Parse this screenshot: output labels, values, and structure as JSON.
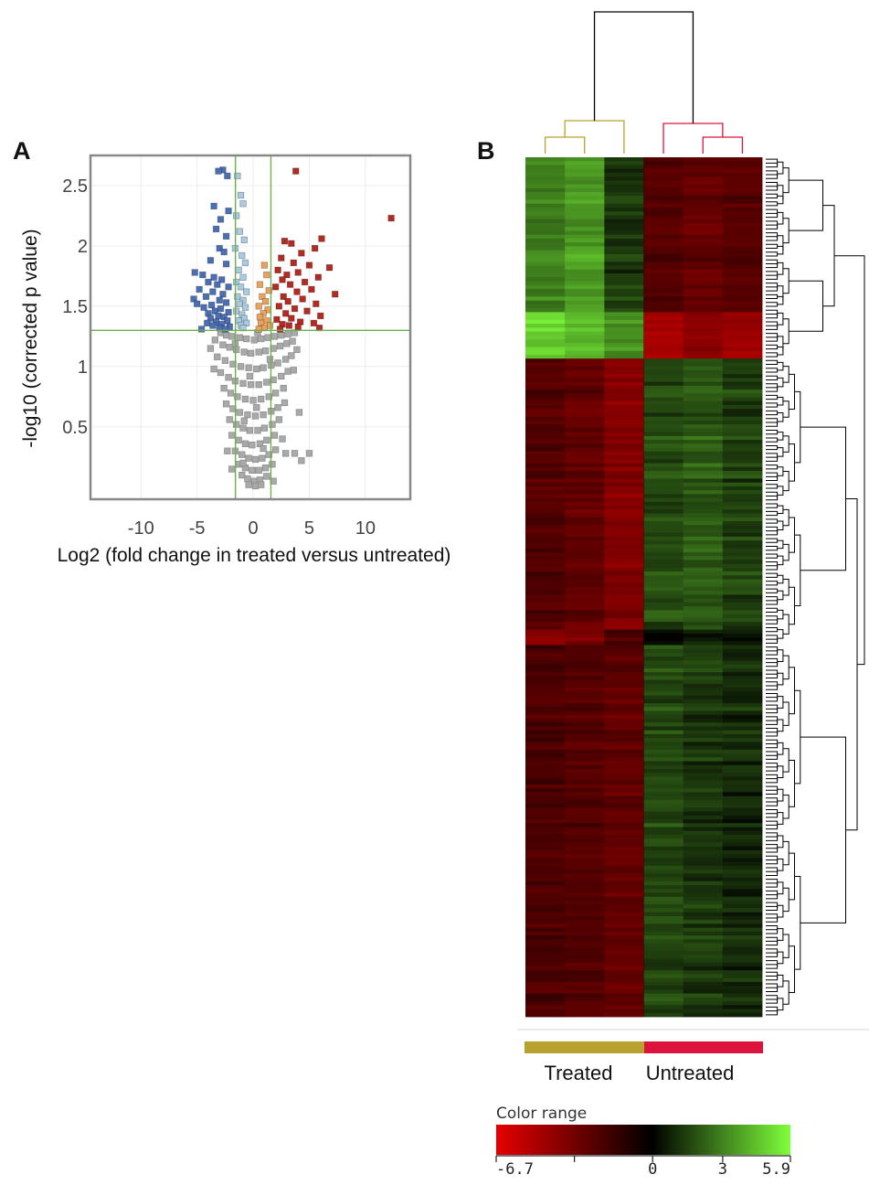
{
  "panels": {
    "a_label": "A",
    "b_label": "B"
  },
  "chart_data": [
    {
      "type": "scatter",
      "panel": "A",
      "xlabel": "Log2 (fold change in treated versus untreated)",
      "ylabel": "-log10 (corrected p value)",
      "xlim": [
        -14.5,
        14
      ],
      "ylim": [
        -0.1,
        2.75
      ],
      "xticks": [
        -10,
        -5,
        0,
        5,
        10
      ],
      "yticks": [
        0.5,
        1,
        1.5,
        2,
        2.5
      ],
      "grid": true,
      "thresholds": {
        "x": [
          -1.58,
          1.58
        ],
        "y": 1.3
      },
      "colors": {
        "not_significant": "#a9a9a9",
        "down_strong": "#4a6fb5",
        "down_weak": "#a8cbe2",
        "up_weak": "#eba35b",
        "up_strong": "#b52a22",
        "threshold_line": "#6ab04c"
      },
      "series": [
        {
          "key": "down_strong",
          "points": [
            [
              -2.7,
              2.63
            ],
            [
              -3.1,
              2.62
            ],
            [
              -2.3,
              2.58
            ],
            [
              -3.5,
              2.33
            ],
            [
              -2.2,
              2.29
            ],
            [
              -2.9,
              2.22
            ],
            [
              -3.3,
              2.14
            ],
            [
              -2.4,
              2.08
            ],
            [
              -3.0,
              1.98
            ],
            [
              -2.6,
              1.95
            ],
            [
              -3.8,
              1.88
            ],
            [
              -2.4,
              1.85
            ],
            [
              -5.2,
              1.78
            ],
            [
              -4.5,
              1.76
            ],
            [
              -3.5,
              1.74
            ],
            [
              -2.8,
              1.72
            ],
            [
              -4.0,
              1.7
            ],
            [
              -3.2,
              1.68
            ],
            [
              -2.2,
              1.66
            ],
            [
              -4.8,
              1.64
            ],
            [
              -3.6,
              1.62
            ],
            [
              -2.7,
              1.6
            ],
            [
              -4.2,
              1.58
            ],
            [
              -5.3,
              1.56
            ],
            [
              -3.0,
              1.55
            ],
            [
              -2.4,
              1.53
            ],
            [
              -5.0,
              1.52
            ],
            [
              -3.7,
              1.51
            ],
            [
              -4.4,
              1.49
            ],
            [
              -2.9,
              1.48
            ],
            [
              -3.4,
              1.46
            ],
            [
              -2.2,
              1.45
            ],
            [
              -4.0,
              1.44
            ],
            [
              -3.1,
              1.42
            ],
            [
              -2.6,
              1.41
            ],
            [
              -3.8,
              1.4
            ],
            [
              -2.3,
              1.38
            ],
            [
              -3.3,
              1.37
            ],
            [
              -4.1,
              1.36
            ],
            [
              -2.8,
              1.35
            ],
            [
              -3.6,
              1.34
            ],
            [
              -2.1,
              1.33
            ],
            [
              -3.0,
              1.32
            ],
            [
              -4.6,
              1.31
            ],
            [
              -2.5,
              1.31
            ]
          ]
        },
        {
          "key": "down_weak",
          "points": [
            [
              -1.4,
              2.58
            ],
            [
              -1.1,
              2.42
            ],
            [
              -0.9,
              2.35
            ],
            [
              -1.5,
              2.25
            ],
            [
              -1.2,
              2.12
            ],
            [
              -0.8,
              2.05
            ],
            [
              -1.6,
              1.98
            ],
            [
              -1.0,
              1.92
            ],
            [
              -0.7,
              1.86
            ],
            [
              -1.3,
              1.8
            ],
            [
              -0.9,
              1.74
            ],
            [
              -1.5,
              1.7
            ],
            [
              -1.1,
              1.66
            ],
            [
              -0.6,
              1.62
            ],
            [
              -1.4,
              1.58
            ],
            [
              -0.9,
              1.55
            ],
            [
              -1.2,
              1.52
            ],
            [
              -0.7,
              1.49
            ],
            [
              -1.5,
              1.46
            ],
            [
              -1.0,
              1.43
            ],
            [
              -0.8,
              1.4
            ],
            [
              -1.3,
              1.38
            ],
            [
              -0.6,
              1.36
            ],
            [
              -1.1,
              1.34
            ],
            [
              -0.9,
              1.32
            ]
          ]
        },
        {
          "key": "up_weak",
          "points": [
            [
              1.0,
              1.84
            ],
            [
              1.2,
              1.76
            ],
            [
              0.6,
              1.68
            ],
            [
              1.4,
              1.63
            ],
            [
              0.8,
              1.58
            ],
            [
              1.1,
              1.54
            ],
            [
              0.5,
              1.5
            ],
            [
              1.3,
              1.47
            ],
            [
              0.9,
              1.44
            ],
            [
              0.6,
              1.41
            ],
            [
              1.2,
              1.38
            ],
            [
              0.7,
              1.36
            ],
            [
              1.5,
              1.34
            ],
            [
              1.0,
              1.32
            ],
            [
              0.5,
              1.31
            ]
          ]
        },
        {
          "key": "up_strong",
          "points": [
            [
              3.8,
              2.62
            ],
            [
              12.3,
              2.23
            ],
            [
              6.1,
              2.06
            ],
            [
              2.8,
              2.04
            ],
            [
              3.4,
              2.02
            ],
            [
              5.5,
              1.98
            ],
            [
              4.3,
              1.94
            ],
            [
              2.5,
              1.9
            ],
            [
              3.6,
              1.86
            ],
            [
              5.0,
              1.84
            ],
            [
              6.8,
              1.82
            ],
            [
              2.2,
              1.8
            ],
            [
              4.0,
              1.78
            ],
            [
              3.0,
              1.76
            ],
            [
              5.8,
              1.74
            ],
            [
              2.6,
              1.72
            ],
            [
              4.6,
              1.7
            ],
            [
              3.3,
              1.68
            ],
            [
              2.0,
              1.66
            ],
            [
              5.2,
              1.64
            ],
            [
              3.9,
              1.62
            ],
            [
              7.3,
              1.6
            ],
            [
              2.7,
              1.58
            ],
            [
              4.4,
              1.56
            ],
            [
              3.1,
              1.54
            ],
            [
              5.6,
              1.52
            ],
            [
              2.3,
              1.5
            ],
            [
              3.7,
              1.48
            ],
            [
              4.8,
              1.46
            ],
            [
              2.9,
              1.44
            ],
            [
              6.0,
              1.42
            ],
            [
              3.4,
              1.4
            ],
            [
              2.1,
              1.39
            ],
            [
              4.2,
              1.37
            ],
            [
              5.4,
              1.36
            ],
            [
              2.6,
              1.35
            ],
            [
              3.2,
              1.34
            ],
            [
              4.0,
              1.33
            ],
            [
              5.9,
              1.32
            ],
            [
              2.4,
              1.31
            ]
          ]
        },
        {
          "key": "not_significant",
          "note_free": true,
          "points": [
            [
              -2.9,
              1.28
            ],
            [
              -2.4,
              1.26
            ],
            [
              -1.9,
              1.25
            ],
            [
              -1.2,
              1.24
            ],
            [
              -0.6,
              1.23
            ],
            [
              0.1,
              1.22
            ],
            [
              0.7,
              1.23
            ],
            [
              1.3,
              1.24
            ],
            [
              1.9,
              1.25
            ],
            [
              2.5,
              1.26
            ],
            [
              3.1,
              1.27
            ],
            [
              3.7,
              1.28
            ],
            [
              -3.4,
              1.22
            ],
            [
              -2.7,
              1.18
            ],
            [
              -2.1,
              1.16
            ],
            [
              -1.5,
              1.14
            ],
            [
              -0.8,
              1.12
            ],
            [
              -0.2,
              1.11
            ],
            [
              0.5,
              1.12
            ],
            [
              1.1,
              1.13
            ],
            [
              1.8,
              1.15
            ],
            [
              2.4,
              1.17
            ],
            [
              3.0,
              1.19
            ],
            [
              3.5,
              1.21
            ],
            [
              -3.2,
              1.08
            ],
            [
              -2.5,
              1.05
            ],
            [
              -1.8,
              1.02
            ],
            [
              -1.1,
              1.0
            ],
            [
              -0.4,
              0.99
            ],
            [
              0.3,
              0.98
            ],
            [
              0.9,
              0.99
            ],
            [
              1.6,
              1.01
            ],
            [
              2.2,
              1.03
            ],
            [
              2.9,
              1.06
            ],
            [
              3.4,
              1.09
            ],
            [
              -2.9,
              0.95
            ],
            [
              -2.2,
              0.91
            ],
            [
              -1.6,
              0.88
            ],
            [
              -0.9,
              0.86
            ],
            [
              -0.2,
              0.85
            ],
            [
              0.5,
              0.85
            ],
            [
              1.2,
              0.87
            ],
            [
              1.8,
              0.89
            ],
            [
              2.5,
              0.92
            ],
            [
              3.1,
              0.96
            ],
            [
              -2.6,
              0.82
            ],
            [
              -2.0,
              0.78
            ],
            [
              -1.4,
              0.75
            ],
            [
              -0.7,
              0.73
            ],
            [
              0.0,
              0.72
            ],
            [
              0.7,
              0.73
            ],
            [
              1.4,
              0.75
            ],
            [
              2.0,
              0.78
            ],
            [
              2.7,
              0.82
            ],
            [
              -2.4,
              0.69
            ],
            [
              -1.8,
              0.65
            ],
            [
              -1.2,
              0.62
            ],
            [
              -0.5,
              0.6
            ],
            [
              0.2,
              0.59
            ],
            [
              0.9,
              0.6
            ],
            [
              1.6,
              0.63
            ],
            [
              2.2,
              0.66
            ],
            [
              2.8,
              0.7
            ],
            [
              -2.1,
              0.56
            ],
            [
              -1.5,
              0.52
            ],
            [
              -0.9,
              0.49
            ],
            [
              -0.3,
              0.47
            ],
            [
              0.4,
              0.47
            ],
            [
              1.0,
              0.49
            ],
            [
              1.7,
              0.52
            ],
            [
              2.3,
              0.56
            ],
            [
              -1.9,
              0.43
            ],
            [
              -1.3,
              0.39
            ],
            [
              -0.7,
              0.36
            ],
            [
              -0.1,
              0.35
            ],
            [
              0.6,
              0.36
            ],
            [
              1.2,
              0.39
            ],
            [
              1.9,
              0.43
            ],
            [
              -1.6,
              0.3
            ],
            [
              -1.0,
              0.27
            ],
            [
              -0.4,
              0.24
            ],
            [
              0.2,
              0.23
            ],
            [
              0.8,
              0.24
            ],
            [
              1.4,
              0.27
            ],
            [
              2.0,
              0.31
            ],
            [
              -1.3,
              0.19
            ],
            [
              -0.7,
              0.16
            ],
            [
              -0.1,
              0.14
            ],
            [
              0.5,
              0.14
            ],
            [
              1.1,
              0.16
            ],
            [
              1.7,
              0.19
            ],
            [
              -1.0,
              0.1
            ],
            [
              -0.5,
              0.07
            ],
            [
              0.1,
              0.05
            ],
            [
              0.6,
              0.06
            ],
            [
              1.2,
              0.09
            ],
            [
              -0.4,
              0.02
            ],
            [
              0.2,
              0.01
            ],
            [
              0.7,
              0.02
            ],
            [
              -3.8,
              1.15
            ],
            [
              3.9,
              1.14
            ],
            [
              -3.5,
              0.98
            ],
            [
              3.6,
              0.97
            ],
            [
              4.1,
              0.62
            ],
            [
              2.6,
              0.4
            ],
            [
              2.9,
              0.28
            ],
            [
              3.7,
              0.28
            ],
            [
              5.0,
              0.28
            ],
            [
              4.3,
              0.22
            ],
            [
              -2.3,
              0.3
            ],
            [
              -1.9,
              0.15
            ],
            [
              1.8,
              0.05
            ],
            [
              -0.8,
              0.55
            ],
            [
              0.3,
              0.66
            ],
            [
              -0.3,
              0.92
            ],
            [
              1.5,
              1.06
            ],
            [
              -1.6,
              1.19
            ],
            [
              0.4,
              1.28
            ],
            [
              -0.9,
              0.2
            ],
            [
              0.9,
              0.32
            ]
          ]
        }
      ]
    },
    {
      "type": "heatmap",
      "panel": "B",
      "groups": [
        "Treated",
        "Untreated"
      ],
      "group_colors": {
        "Treated": "#b8a22e",
        "Untreated": "#dc143c"
      },
      "columns": 6,
      "column_groups": [
        "Treated",
        "Treated",
        "Treated",
        "Untreated",
        "Untreated",
        "Untreated"
      ],
      "row_blocks": [
        {
          "rows": 40,
          "values": [
            3.0,
            3.6,
            1.4,
            -2.4,
            -2.8,
            -2.4
          ]
        },
        {
          "rows": 12,
          "values": [
            5.0,
            4.4,
            3.4,
            -4.8,
            -4.0,
            -4.6
          ]
        },
        {
          "rows": 70,
          "values": [
            -2.4,
            -2.8,
            -3.8,
            1.8,
            2.1,
            1.5
          ]
        },
        {
          "rows": 4,
          "values": [
            -4.2,
            -3.6,
            -2.2,
            0.3,
            0.6,
            0.2
          ]
        },
        {
          "rows": 96,
          "values": [
            -2.2,
            -2.4,
            -2.8,
            1.6,
            1.3,
            1.0
          ]
        }
      ],
      "color_range": {
        "title": "Color range",
        "min": -6.7,
        "max": 5.9,
        "tick_labels": [
          "-6.7",
          "0",
          "3",
          "5.9"
        ],
        "low_color": "#e60000",
        "mid_color": "#000000",
        "high_color": "#7fff3a"
      }
    }
  ]
}
